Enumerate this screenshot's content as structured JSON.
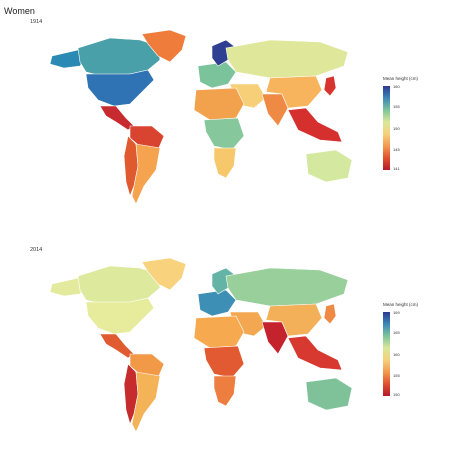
{
  "figure": {
    "title": "Women"
  },
  "panels": [
    {
      "label": "1914",
      "legend": {
        "title": "Mean height (cm)",
        "ticks": [
          "160",
          "155",
          "150",
          "145",
          "141"
        ],
        "colors": [
          "#2b3a8f",
          "#3a87b8",
          "#7fc49a",
          "#d8e89a",
          "#f6d07a",
          "#f39a4f",
          "#e0502f",
          "#b31b2a"
        ]
      },
      "region_colors": {
        "north_america": "#2f73b4",
        "canada": "#4aa0a8",
        "alaska": "#2a8ab4",
        "greenland": "#f07c3b",
        "central_america": "#c72a2f",
        "south_america_north": "#d8442f",
        "andes": "#e05a30",
        "south_america_south": "#f5a34e",
        "europe_west": "#7ac39b",
        "scandinavia": "#2f3f92",
        "russia": "#dfe79a",
        "middle_east": "#f6cf78",
        "south_asia": "#ef8a44",
        "china": "#f8b45d",
        "southeast_asia": "#d6302e",
        "japan": "#d8342f",
        "africa_north": "#f2a24c",
        "africa_central": "#86c79c",
        "africa_south": "#f7c86b",
        "australia": "#d5e8a0"
      }
    },
    {
      "label": "2014",
      "legend": {
        "title": "Mean height (cm)",
        "ticks": [
          "169",
          "165",
          "160",
          "155",
          "150"
        ],
        "colors": [
          "#2b3a8f",
          "#3a87b8",
          "#7fc49a",
          "#d8e89a",
          "#f6d07a",
          "#f39a4f",
          "#e0502f",
          "#b31b2a"
        ]
      },
      "region_colors": {
        "north_america": "#e6ec9c",
        "canada": "#dde99c",
        "alaska": "#e3ea9d",
        "greenland": "#f8d27d",
        "central_america": "#e05b30",
        "south_america_north": "#f29948",
        "andes": "#c62b2e",
        "south_america_south": "#f4b357",
        "europe_west": "#3d8fb5",
        "scandinavia": "#63b3a7",
        "russia": "#98cf9a",
        "middle_east": "#f3a750",
        "south_asia": "#c4232d",
        "china": "#f3b058",
        "southeast_asia": "#d7382f",
        "japan": "#ef8a44",
        "africa_north": "#f7a94f",
        "africa_central": "#e15a31",
        "africa_south": "#ed7e3f",
        "australia": "#7fc29a"
      }
    }
  ]
}
